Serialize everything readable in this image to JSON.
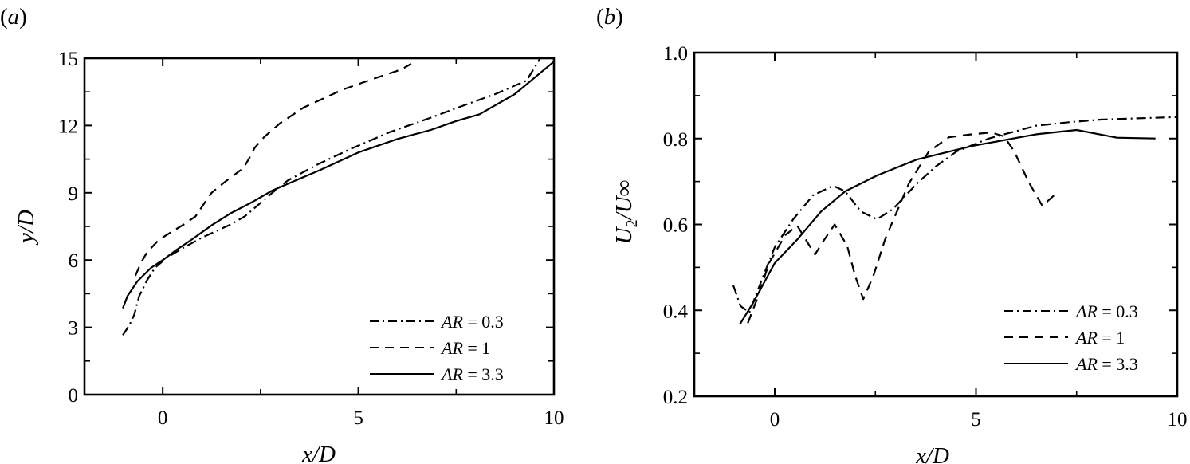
{
  "chart_data": [
    {
      "panel": "(a)",
      "type": "line",
      "title": "",
      "xlabel": "x/D",
      "ylabel": "y/D",
      "xlim": [
        -2,
        10
      ],
      "ylim": [
        0,
        15
      ],
      "xticks": [
        0,
        5,
        10
      ],
      "xtick_labels": [
        "0",
        "5",
        "10"
      ],
      "xminor": [
        2.5,
        7.5
      ],
      "yticks": [
        0,
        3,
        6,
        9,
        12,
        15
      ],
      "ytick_labels": [
        "0",
        "3",
        "6",
        "9",
        "12",
        "15"
      ],
      "yminor": [
        1.5,
        4.5,
        7.5,
        10.5,
        13.5
      ],
      "grid": false,
      "legend_position": "lower right",
      "series": [
        {
          "name": "AR = 0.3",
          "style": "dashdot",
          "x": [
            -1.02,
            -0.85,
            -0.73,
            -0.6,
            -0.4,
            -0.2,
            0.1,
            0.53,
            1.0,
            1.75,
            2.1,
            2.4,
            2.8,
            3.2,
            4.0,
            4.8,
            5.8,
            6.85,
            7.7,
            8.5,
            9.3,
            9.65
          ],
          "y": [
            2.65,
            3.1,
            3.55,
            4.4,
            5.1,
            5.65,
            6.1,
            6.55,
            7.0,
            7.6,
            7.95,
            8.4,
            9.0,
            9.55,
            10.3,
            10.95,
            11.7,
            12.35,
            12.9,
            13.4,
            14.0,
            15.0
          ]
        },
        {
          "name": "AR = 1",
          "style": "dashed",
          "x": [
            -0.7,
            -0.55,
            -0.4,
            -0.1,
            0.22,
            0.55,
            0.84,
            1.05,
            1.25,
            1.6,
            2.06,
            2.2,
            2.35,
            2.6,
            3.0,
            3.6,
            4.6,
            5.5,
            6.1,
            6.35
          ],
          "y": [
            5.3,
            5.9,
            6.35,
            6.9,
            7.25,
            7.6,
            7.95,
            8.5,
            9.0,
            9.5,
            10.1,
            10.5,
            11.0,
            11.5,
            12.1,
            12.8,
            13.6,
            14.15,
            14.5,
            14.75
          ]
        },
        {
          "name": "AR = 3.3",
          "style": "solid",
          "x": [
            -1.02,
            -0.9,
            -0.65,
            -0.3,
            0.0,
            0.35,
            0.73,
            1.25,
            1.75,
            2.3,
            2.8,
            3.4,
            4.0,
            5.0,
            6.0,
            6.85,
            7.5,
            8.1,
            9.0,
            10.0
          ],
          "y": [
            3.85,
            4.4,
            5.05,
            5.65,
            6.0,
            6.45,
            6.9,
            7.55,
            8.1,
            8.6,
            9.1,
            9.55,
            10.0,
            10.8,
            11.4,
            11.8,
            12.2,
            12.5,
            13.4,
            14.85
          ]
        }
      ]
    },
    {
      "panel": "(b)",
      "type": "line",
      "title": "",
      "xlabel": "x/D",
      "ylabel": "U2/U∞",
      "xlim": [
        -2,
        10
      ],
      "ylim": [
        0.2,
        1.0
      ],
      "xticks": [
        0,
        5,
        10
      ],
      "xtick_labels": [
        "0",
        "5",
        "10"
      ],
      "xminor": [
        2.5,
        7.5
      ],
      "yticks": [
        0.2,
        0.4,
        0.6,
        0.8,
        1.0
      ],
      "ytick_labels": [
        "0.2",
        "0.4",
        "0.6",
        "0.8",
        "1.0"
      ],
      "yminor": [
        0.3,
        0.5,
        0.7,
        0.9
      ],
      "grid": false,
      "legend_position": "lower right",
      "series": [
        {
          "name": "AR = 0.3",
          "style": "dashdot",
          "x": [
            -1.03,
            -0.85,
            -0.63,
            -0.45,
            -0.2,
            0.0,
            0.46,
            0.95,
            1.45,
            1.75,
            2.14,
            2.54,
            2.94,
            3.53,
            4.0,
            4.52,
            5.32,
            6.5,
            7.3,
            8.1,
            9.0,
            10.0
          ],
          "y": [
            0.458,
            0.41,
            0.395,
            0.44,
            0.5,
            0.547,
            0.612,
            0.668,
            0.69,
            0.677,
            0.63,
            0.612,
            0.636,
            0.695,
            0.735,
            0.77,
            0.8,
            0.83,
            0.838,
            0.844,
            0.847,
            0.85
          ]
        },
        {
          "name": "AR = 1",
          "style": "dashed",
          "x": [
            -0.67,
            -0.44,
            -0.14,
            0.26,
            0.56,
            0.8,
            1.0,
            1.2,
            1.49,
            1.8,
            2.0,
            2.2,
            2.45,
            2.74,
            3.33,
            3.83,
            4.33,
            4.9,
            5.38,
            5.7,
            5.95,
            6.3,
            6.65,
            6.94
          ],
          "y": [
            0.37,
            0.426,
            0.51,
            0.575,
            0.597,
            0.56,
            0.53,
            0.56,
            0.6,
            0.55,
            0.48,
            0.426,
            0.48,
            0.565,
            0.695,
            0.77,
            0.803,
            0.81,
            0.814,
            0.805,
            0.77,
            0.7,
            0.643,
            0.668
          ]
        },
        {
          "name": "AR = 3.3",
          "style": "solid",
          "x": [
            -0.87,
            -0.54,
            0.0,
            0.56,
            1.15,
            1.75,
            2.54,
            3.53,
            4.92,
            6.5,
            7.5,
            8.5,
            9.46
          ],
          "y": [
            0.367,
            0.417,
            0.51,
            0.565,
            0.63,
            0.677,
            0.714,
            0.751,
            0.783,
            0.81,
            0.82,
            0.802,
            0.8
          ]
        }
      ]
    }
  ],
  "figure": {
    "panel_a_label": "(a)",
    "panel_b_label": "(b)",
    "panel_a_xlabel": "x/D",
    "panel_a_ylabel": "y/D",
    "panel_b_xlabel": "x/D",
    "panel_b_ylabel_main": "U",
    "panel_b_ylabel_sub": "2",
    "panel_b_ylabel_rest": "/U∞",
    "legend": [
      {
        "var": "AR",
        "rest": " = 0.3",
        "style": "dashdot"
      },
      {
        "var": "AR",
        "rest": " = 1",
        "style": "dashed"
      },
      {
        "var": "AR",
        "rest": " = 3.3",
        "style": "solid"
      }
    ]
  }
}
